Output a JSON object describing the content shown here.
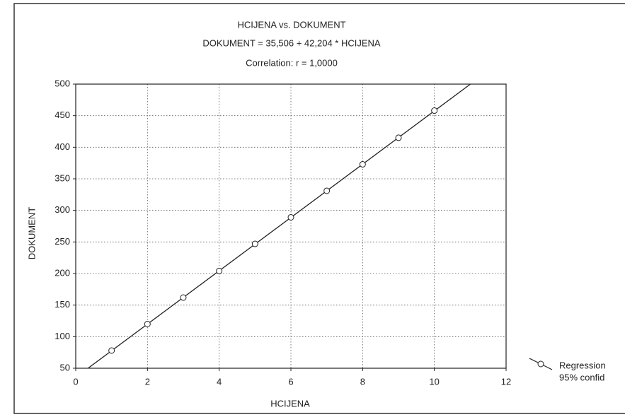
{
  "chart_data": {
    "type": "scatter",
    "title": "HCIJENA vs. DOKUMENT",
    "subtitle": "DOKUMENT = 35,506 + 42,204 * HCIJENA",
    "annotation": "Correlation: r = 1,0000",
    "x_label": "HCIJENA",
    "y_label": "DOKUMENT",
    "fit": {
      "intercept": 35.506,
      "slope": 42.204
    },
    "series": [
      {
        "name": "Regression",
        "color": "#222222",
        "x": [
          1,
          2,
          3,
          4,
          5,
          6,
          7,
          8,
          9,
          10
        ],
        "values": [
          78,
          120,
          162,
          204,
          247,
          289,
          331,
          373,
          415,
          458
        ]
      }
    ],
    "legend_extra": "95% confid",
    "xlim": [
      0,
      12
    ],
    "xticks": [
      0,
      2,
      4,
      6,
      8,
      10,
      12
    ],
    "ylim": [
      50,
      500
    ],
    "yticks": [
      50,
      100,
      150,
      200,
      250,
      300,
      350,
      400,
      450,
      500
    ],
    "grid": true,
    "legend": "lower right"
  }
}
